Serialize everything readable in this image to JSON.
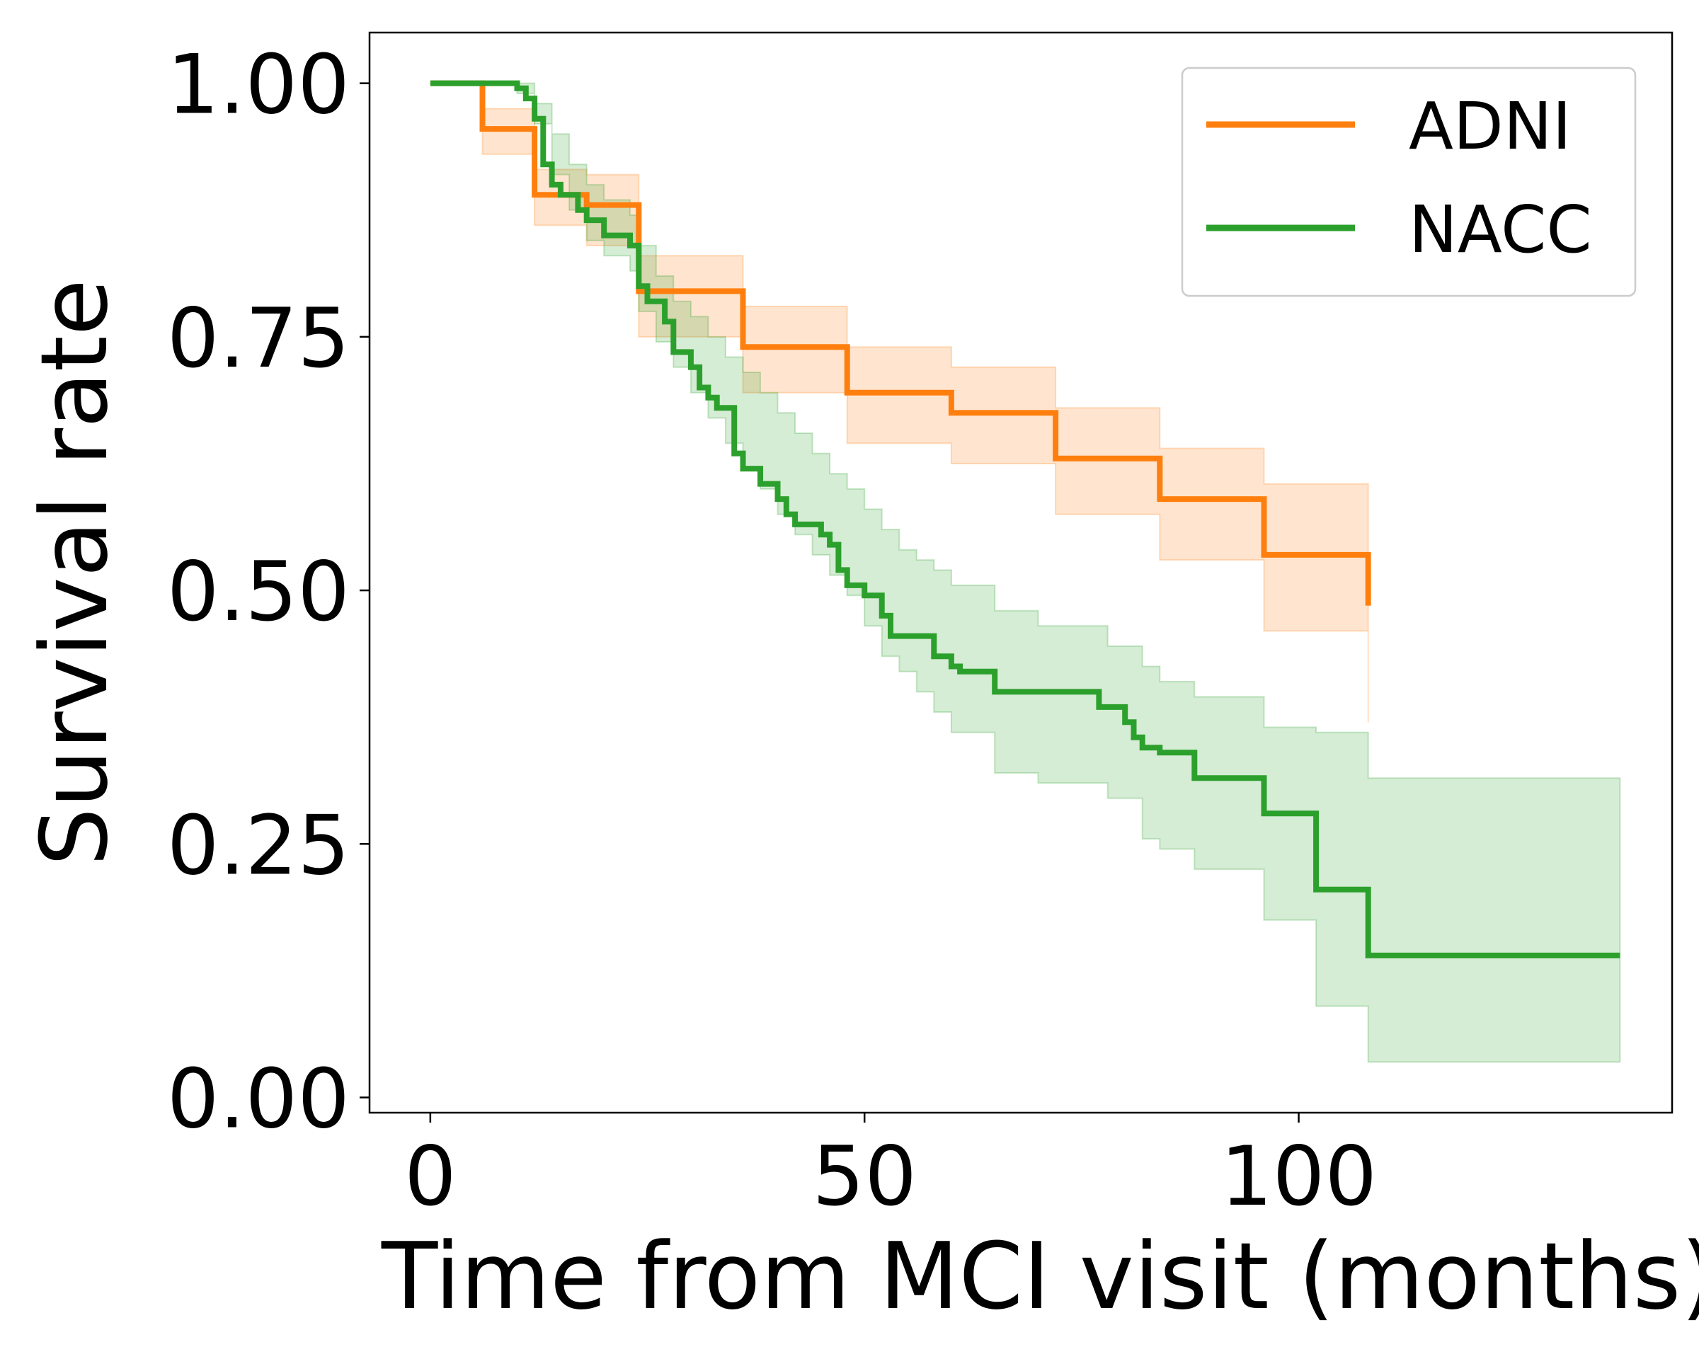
{
  "chart_data": {
    "type": "line",
    "subtype": "kaplan-meier step curves with confidence bands",
    "title": "",
    "xlabel": "Time from MCI visit (months)",
    "ylabel": "Survival rate",
    "xlim": [
      -7,
      143
    ],
    "ylim": [
      -0.015,
      1.05
    ],
    "x_ticks": [
      0,
      50,
      100
    ],
    "x_tick_labels": [
      "0",
      "50",
      "100"
    ],
    "y_ticks": [
      0.0,
      0.25,
      0.5,
      0.75,
      1.0
    ],
    "y_tick_labels": [
      "0.00",
      "0.25",
      "0.50",
      "0.75",
      "1.00"
    ],
    "grid": false,
    "legend_position": "upper-right",
    "series": [
      {
        "name": "ADNI",
        "color": "#ff7f0e",
        "x": [
          0,
          6,
          12,
          18,
          24,
          36,
          48,
          60,
          72,
          84,
          96,
          108,
          108
        ],
        "y": [
          1.0,
          0.955,
          0.89,
          0.88,
          0.795,
          0.74,
          0.695,
          0.675,
          0.63,
          0.59,
          0.535,
          0.535,
          0.485
        ],
        "ci_x": [
          0,
          6,
          12,
          18,
          24,
          36,
          48,
          60,
          72,
          84,
          96,
          108
        ],
        "ci_lower": [
          1.0,
          0.93,
          0.86,
          0.84,
          0.75,
          0.695,
          0.645,
          0.625,
          0.575,
          0.53,
          0.46,
          0.37
        ],
        "ci_upper": [
          1.0,
          0.975,
          0.915,
          0.91,
          0.83,
          0.78,
          0.74,
          0.72,
          0.68,
          0.64,
          0.605,
          0.605
        ]
      },
      {
        "name": "NACC",
        "color": "#2ca02c",
        "x": [
          0,
          10,
          11,
          12,
          13,
          14,
          15,
          17,
          18,
          20,
          23,
          24,
          25,
          27,
          28,
          30,
          31,
          32,
          33,
          35,
          36,
          38,
          40,
          41,
          42,
          43,
          45,
          46,
          47,
          48,
          50,
          52,
          53,
          54,
          58,
          60,
          61,
          65,
          77,
          80,
          81,
          82,
          84,
          88,
          96,
          102,
          108,
          137
        ],
        "y": [
          1.0,
          0.995,
          0.985,
          0.965,
          0.92,
          0.9,
          0.89,
          0.875,
          0.865,
          0.85,
          0.84,
          0.8,
          0.785,
          0.765,
          0.735,
          0.72,
          0.7,
          0.69,
          0.68,
          0.635,
          0.62,
          0.605,
          0.59,
          0.575,
          0.565,
          0.565,
          0.555,
          0.545,
          0.52,
          0.505,
          0.495,
          0.475,
          0.455,
          0.455,
          0.435,
          0.425,
          0.42,
          0.4,
          0.385,
          0.37,
          0.355,
          0.345,
          0.34,
          0.315,
          0.28,
          0.205,
          0.14,
          0.14
        ],
        "ci_x": [
          0,
          10,
          12,
          14,
          16,
          18,
          20,
          23,
          24,
          26,
          28,
          30,
          32,
          34,
          36,
          38,
          40,
          42,
          44,
          46,
          48,
          50,
          52,
          54,
          56,
          58,
          60,
          65,
          70,
          78,
          82,
          84,
          88,
          96,
          102,
          108,
          137
        ],
        "ci_lower": [
          1.0,
          0.99,
          0.96,
          0.91,
          0.875,
          0.845,
          0.83,
          0.815,
          0.775,
          0.745,
          0.72,
          0.695,
          0.67,
          0.645,
          0.62,
          0.6,
          0.575,
          0.555,
          0.535,
          0.515,
          0.495,
          0.465,
          0.435,
          0.42,
          0.4,
          0.38,
          0.36,
          0.32,
          0.31,
          0.295,
          0.255,
          0.245,
          0.225,
          0.175,
          0.09,
          0.035,
          0.035
        ],
        "ci_upper": [
          1.0,
          1.0,
          0.98,
          0.95,
          0.92,
          0.9,
          0.885,
          0.87,
          0.84,
          0.81,
          0.785,
          0.77,
          0.75,
          0.73,
          0.715,
          0.695,
          0.675,
          0.655,
          0.635,
          0.615,
          0.6,
          0.58,
          0.56,
          0.54,
          0.53,
          0.52,
          0.505,
          0.48,
          0.465,
          0.445,
          0.425,
          0.41,
          0.395,
          0.365,
          0.36,
          0.315,
          0.315
        ]
      }
    ]
  }
}
